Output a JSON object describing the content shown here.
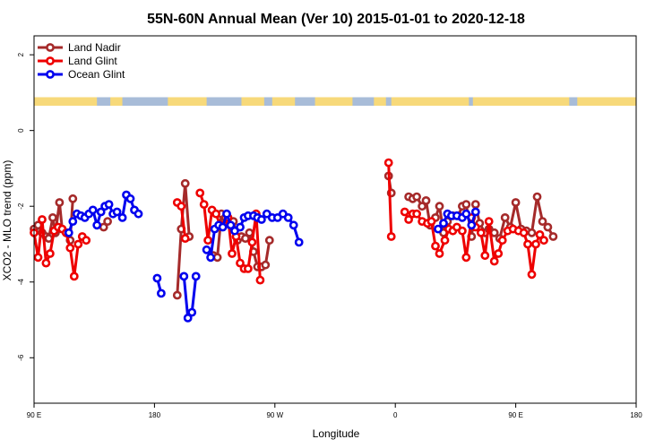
{
  "chart_data": {
    "type": "line",
    "title": "55N-60N Annual Mean (Ver 10)   2015-01-01 to 2020-12-18",
    "xlabel": "Longitude",
    "ylabel": "XCO2 - MLO trend (ppm)",
    "x_axis": {
      "unit": "longitude, continuous eastward from 90 E",
      "ticks": [
        {
          "value": 90,
          "label": "90 E"
        },
        {
          "value": 180,
          "label": "180"
        },
        {
          "value": 270,
          "label": "90 W"
        },
        {
          "value": 360,
          "label": "0"
        },
        {
          "value": 450,
          "label": "90 E"
        },
        {
          "value": 540,
          "label": "180"
        }
      ],
      "xlim": [
        90,
        540
      ]
    },
    "y_axis": {
      "ticks": [
        2,
        0,
        -2,
        -4,
        -6
      ],
      "ylim": [
        -7.2,
        2.5
      ]
    },
    "grid": false,
    "legend_position": "top-left",
    "land_ocean_strip": {
      "ocean_color": "#a8bcd8",
      "land_color": "#f7d97a",
      "land_intervals": [
        [
          90,
          137
        ],
        [
          147,
          156
        ],
        [
          190,
          219
        ],
        [
          245,
          262
        ],
        [
          268,
          285
        ],
        [
          300,
          328
        ],
        [
          344,
          353
        ],
        [
          357,
          415
        ],
        [
          418,
          490
        ],
        [
          496,
          540
        ]
      ]
    },
    "series": [
      {
        "name": "Land Nadir",
        "color": "#a52a2a",
        "segments": [
          [
            [
              90,
              -2.6
            ],
            [
              93,
              -2.5
            ],
            [
              96,
              -2.7
            ],
            [
              99,
              -2.8
            ],
            [
              101,
              -2.85
            ],
            [
              104,
              -2.3
            ],
            [
              106,
              -2.7
            ],
            [
              109,
              -1.9
            ],
            [
              111,
              -2.6
            ],
            [
              114,
              -2.7
            ],
            [
              117,
              -2.9
            ],
            [
              119,
              -1.8
            ]
          ],
          [
            [
              142,
              -2.55
            ],
            [
              145,
              -2.4
            ]
          ],
          [
            [
              197,
              -4.35
            ],
            [
              200,
              -2.6
            ],
            [
              203,
              -1.4
            ],
            [
              206,
              -2.8
            ]
          ],
          [
            [
              224,
              -3.3
            ],
            [
              227,
              -3.35
            ],
            [
              230,
              -2.2
            ],
            [
              233,
              -2.3
            ],
            [
              236,
              -2.4
            ],
            [
              239,
              -2.4
            ],
            [
              242,
              -2.9
            ],
            [
              245,
              -2.8
            ],
            [
              248,
              -2.85
            ],
            [
              251,
              -2.7
            ],
            [
              254,
              -3.2
            ],
            [
              257,
              -3.6
            ],
            [
              260,
              -3.6
            ],
            [
              263,
              -3.55
            ],
            [
              266,
              -2.9
            ]
          ],
          [
            [
              355,
              -1.2
            ],
            [
              357,
              -1.65
            ]
          ],
          [
            [
              370,
              -1.75
            ],
            [
              373,
              -1.8
            ],
            [
              376,
              -1.75
            ],
            [
              380,
              -2.0
            ],
            [
              383,
              -1.85
            ],
            [
              386,
              -2.5
            ]
          ],
          [
            [
              390,
              -2.3
            ],
            [
              393,
              -2.0
            ],
            [
              396,
              -2.7
            ],
            [
              399,
              -2.4
            ],
            [
              403,
              -2.25
            ],
            [
              407,
              -2.25
            ],
            [
              410,
              -2.0
            ],
            [
              413,
              -1.95
            ],
            [
              417,
              -2.8
            ],
            [
              420,
              -1.95
            ],
            [
              423,
              -2.45
            ],
            [
              427,
              -2.7
            ],
            [
              430,
              -2.6
            ],
            [
              434,
              -2.7
            ],
            [
              438,
              -2.85
            ],
            [
              442,
              -2.3
            ],
            [
              446,
              -2.55
            ],
            [
              450,
              -1.9
            ],
            [
              454,
              -2.6
            ],
            [
              458,
              -2.65
            ],
            [
              462,
              -2.7
            ],
            [
              466,
              -1.75
            ],
            [
              470,
              -2.4
            ],
            [
              474,
              -2.55
            ],
            [
              478,
              -2.8
            ]
          ]
        ]
      },
      {
        "name": "Land Glint",
        "color": "#ee0000",
        "segments": [
          [
            [
              90,
              -2.7
            ],
            [
              93,
              -3.35
            ],
            [
              96,
              -2.35
            ],
            [
              99,
              -3.5
            ],
            [
              102,
              -3.25
            ],
            [
              105,
              -2.65
            ],
            [
              108,
              -2.55
            ],
            [
              111,
              -2.6
            ],
            [
              114,
              -2.7
            ],
            [
              117,
              -3.1
            ],
            [
              120,
              -3.85
            ],
            [
              123,
              -3.0
            ],
            [
              126,
              -2.8
            ],
            [
              129,
              -2.9
            ]
          ],
          [
            [
              197,
              -1.9
            ],
            [
              200,
              -2.0
            ],
            [
              203,
              -2.85
            ]
          ],
          [
            [
              214,
              -1.65
            ],
            [
              217,
              -1.95
            ],
            [
              220,
              -2.9
            ],
            [
              223,
              -2.1
            ],
            [
              226,
              -2.2
            ],
            [
              229,
              -2.5
            ],
            [
              232,
              -2.5
            ],
            [
              235,
              -2.3
            ],
            [
              238,
              -3.25
            ],
            [
              241,
              -2.8
            ],
            [
              244,
              -3.5
            ],
            [
              247,
              -3.65
            ],
            [
              250,
              -3.65
            ],
            [
              253,
              -2.95
            ],
            [
              256,
              -2.2
            ],
            [
              259,
              -3.95
            ]
          ],
          [
            [
              355,
              -0.85
            ],
            [
              357,
              -2.8
            ]
          ],
          [
            [
              367,
              -2.15
            ],
            [
              370,
              -2.35
            ],
            [
              373,
              -2.2
            ],
            [
              376,
              -2.2
            ],
            [
              380,
              -2.4
            ],
            [
              384,
              -2.45
            ],
            [
              387,
              -2.4
            ],
            [
              390,
              -3.05
            ],
            [
              393,
              -3.25
            ],
            [
              397,
              -2.9
            ],
            [
              400,
              -2.6
            ],
            [
              403,
              -2.65
            ],
            [
              406,
              -2.55
            ],
            [
              410,
              -2.65
            ],
            [
              413,
              -3.35
            ],
            [
              417,
              -2.3
            ],
            [
              420,
              -2.55
            ],
            [
              424,
              -2.7
            ],
            [
              427,
              -3.3
            ],
            [
              430,
              -2.4
            ],
            [
              434,
              -3.45
            ],
            [
              437,
              -3.25
            ],
            [
              440,
              -2.9
            ],
            [
              444,
              -2.65
            ],
            [
              448,
              -2.6
            ],
            [
              452,
              -2.65
            ],
            [
              456,
              -2.7
            ],
            [
              459,
              -3.0
            ],
            [
              462,
              -3.8
            ],
            [
              465,
              -3.0
            ],
            [
              468,
              -2.75
            ],
            [
              471,
              -2.9
            ]
          ]
        ]
      },
      {
        "name": "Ocean Glint",
        "color": "#0000ee",
        "segments": [
          [
            [
              116,
              -2.7
            ],
            [
              119,
              -2.4
            ],
            [
              122,
              -2.2
            ],
            [
              125,
              -2.25
            ],
            [
              128,
              -2.3
            ],
            [
              131,
              -2.2
            ],
            [
              134,
              -2.1
            ],
            [
              137,
              -2.5
            ],
            [
              140,
              -2.15
            ],
            [
              143,
              -2.0
            ],
            [
              146,
              -1.95
            ],
            [
              149,
              -2.2
            ],
            [
              152,
              -2.15
            ],
            [
              156,
              -2.3
            ],
            [
              159,
              -1.7
            ],
            [
              162,
              -1.8
            ],
            [
              165,
              -2.1
            ],
            [
              168,
              -2.2
            ]
          ],
          [
            [
              182,
              -3.9
            ],
            [
              185,
              -4.3
            ]
          ],
          [
            [
              202,
              -3.85
            ],
            [
              205,
              -4.95
            ],
            [
              208,
              -4.8
            ],
            [
              211,
              -3.85
            ]
          ],
          [
            [
              219,
              -3.15
            ],
            [
              222,
              -3.35
            ],
            [
              225,
              -2.6
            ],
            [
              228,
              -2.5
            ],
            [
              231,
              -2.55
            ],
            [
              234,
              -2.2
            ],
            [
              237,
              -2.5
            ],
            [
              240,
              -2.65
            ],
            [
              244,
              -2.55
            ],
            [
              247,
              -2.3
            ],
            [
              250,
              -2.25
            ],
            [
              254,
              -2.25
            ],
            [
              257,
              -2.3
            ],
            [
              260,
              -2.35
            ],
            [
              264,
              -2.2
            ],
            [
              268,
              -2.3
            ],
            [
              272,
              -2.3
            ],
            [
              276,
              -2.2
            ],
            [
              280,
              -2.3
            ],
            [
              284,
              -2.5
            ],
            [
              288,
              -2.95
            ]
          ],
          [
            [
              392,
              -2.6
            ],
            [
              396,
              -2.45
            ],
            [
              399,
              -2.2
            ],
            [
              402,
              -2.25
            ],
            [
              406,
              -2.25
            ],
            [
              410,
              -2.3
            ],
            [
              413,
              -2.2
            ],
            [
              417,
              -2.5
            ],
            [
              420,
              -2.15
            ]
          ]
        ]
      }
    ]
  }
}
